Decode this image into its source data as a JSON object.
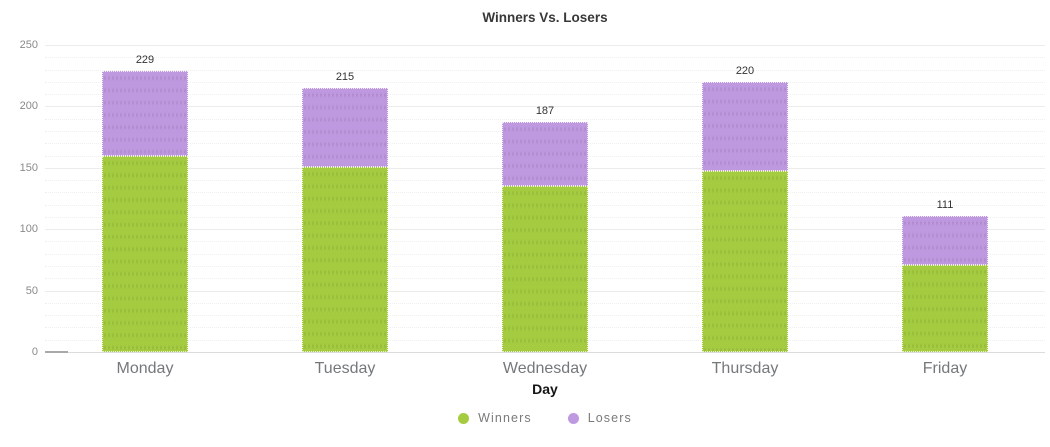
{
  "chart_data": {
    "type": "bar",
    "stacked": true,
    "title": "Winners Vs. Losers",
    "xlabel": "Day",
    "ylabel": "",
    "categories": [
      "Monday",
      "Tuesday",
      "Wednesday",
      "Thursday",
      "Friday"
    ],
    "series": [
      {
        "name": "Winners",
        "color": "#a5cc40",
        "values": [
          160,
          151,
          135,
          147,
          71
        ]
      },
      {
        "name": "Losers",
        "color": "#bf99e0",
        "values": [
          69,
          64,
          52,
          73,
          40
        ]
      }
    ],
    "totals": [
      229,
      215,
      187,
      220,
      111
    ],
    "ylim": [
      0,
      250
    ],
    "yticks": [
      0,
      50,
      100,
      150,
      200,
      250
    ],
    "minor_tick_step": 10,
    "grid": true,
    "legend_position": "bottom"
  }
}
